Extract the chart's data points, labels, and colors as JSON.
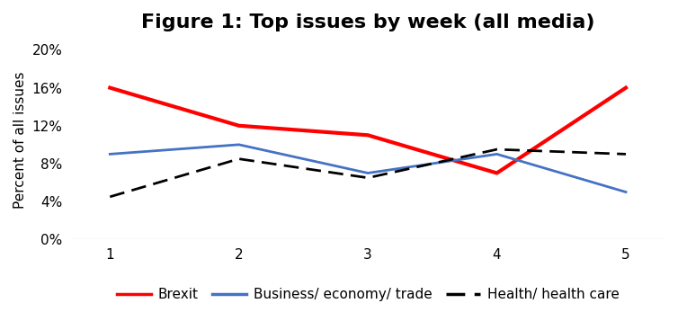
{
  "title": "Figure 1: Top issues by week (all media)",
  "xlabel": "",
  "ylabel": "Percent of all issues",
  "x": [
    1,
    2,
    3,
    4,
    5
  ],
  "series": [
    {
      "label": "Brexit",
      "values": [
        0.16,
        0.12,
        0.11,
        0.07,
        0.16
      ],
      "color": "#ff0000",
      "linewidth": 3.0,
      "linestyle": "solid"
    },
    {
      "label": "Business/ economy/ trade",
      "values": [
        0.09,
        0.1,
        0.07,
        0.09,
        0.05
      ],
      "color": "#4472c4",
      "linewidth": 2.0,
      "linestyle": "solid"
    },
    {
      "label": "Health/ health care",
      "values": [
        0.045,
        0.085,
        0.065,
        0.095,
        0.09
      ],
      "color": "#000000",
      "linewidth": 2.0,
      "linestyle": "dashed"
    }
  ],
  "ylim": [
    0,
    0.21
  ],
  "yticks": [
    0.0,
    0.04,
    0.08,
    0.12,
    0.16,
    0.2
  ],
  "ytick_labels": [
    "0%",
    "4%",
    "8%",
    "12%",
    "16%",
    "20%"
  ],
  "xticks": [
    1,
    2,
    3,
    4,
    5
  ],
  "title_fontsize": 16,
  "axis_fontsize": 11,
  "tick_fontsize": 11,
  "legend_fontsize": 11,
  "background_color": "#ffffff"
}
